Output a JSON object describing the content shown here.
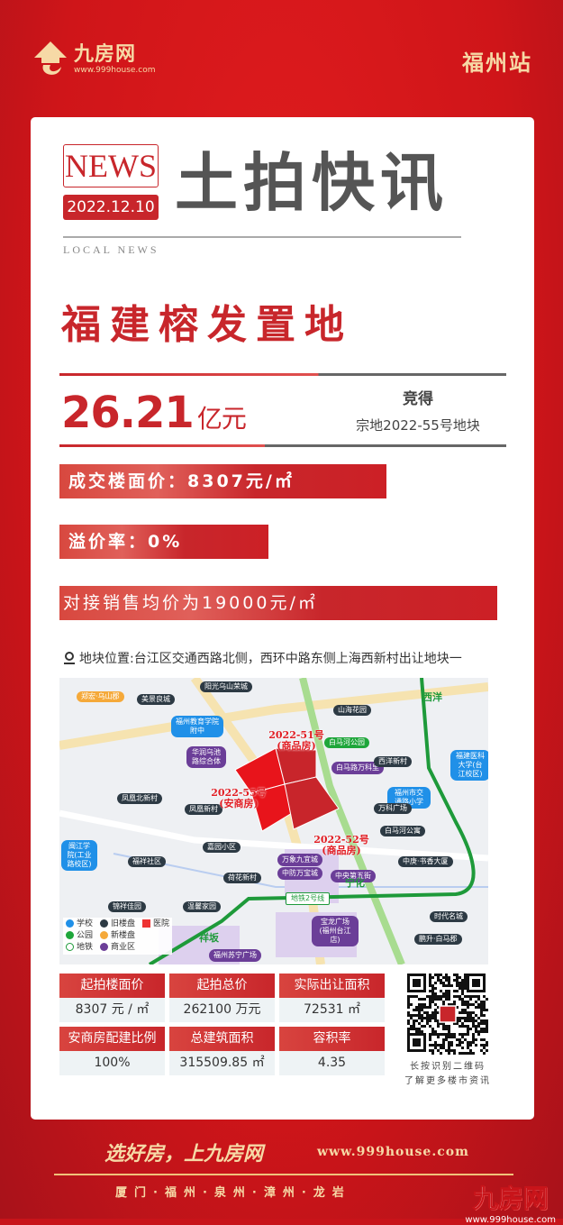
{
  "header": {
    "brand": "九房网",
    "url": "www.999house.com",
    "station": "福州站"
  },
  "masthead": {
    "news": "NEWS",
    "date": "2022.12.10",
    "title": "土拍快讯",
    "sub": "LOCAL NEWS"
  },
  "headline": "福建榕发置地",
  "deal": {
    "price": "26.21",
    "unit": "亿元",
    "won": "竞得",
    "parcel": "宗地2022-55号地块"
  },
  "bars": [
    {
      "text": "成交楼面价：8307元/㎡"
    },
    {
      "text": "溢价率：0%"
    },
    {
      "text": "对接销售均价为19000元/㎡"
    }
  ],
  "location": "地块位置:台江区交通西路北侧，西环中路东侧上海西新村出让地块一",
  "map": {
    "labels": [
      "郑宏·乌山郡",
      "美景良城",
      "阳光乌山荣城",
      "福州教育学院附中",
      "华润乌池路综合体",
      "凤凰北新村",
      "凤凰新村",
      "山海花园",
      "白马河公园",
      "白马路万科里",
      "西洋新村",
      "西洋",
      "福建医科大学(台江校区)",
      "福州市交通路小学",
      "万科广场",
      "闽江学院(工业路校区)",
      "嘉园小区",
      "福祥社区",
      "荷花新村",
      "锦祥佳园",
      "温馨家园",
      "祥坂",
      "福州苏宁广场",
      "白马河公寓",
      "万象九宜城",
      "中防万宝城",
      "中央第五街",
      "中庚·书香大厦",
      "宁化",
      "地铁2号线",
      "宝龙广场(福州台江店)",
      "时代名城",
      "鹏升·白马郡"
    ],
    "parcels": [
      "2022-51号(商品房)",
      "2022-55号(安商房)",
      "2022-52号(商品房)"
    ],
    "legend": [
      "学校",
      "旧楼盘",
      "医院",
      "公园",
      "新楼盘",
      "地铁",
      "商业区"
    ],
    "colors": {
      "parcel": "#e8141b",
      "metro": "#1e9a3a",
      "school": "#2090e8",
      "commercial": "#6b3e98"
    }
  },
  "table": [
    {
      "label": "起拍楼面价",
      "value": "8307 元 / ㎡"
    },
    {
      "label": "起拍总价",
      "value": "262100 万元"
    },
    {
      "label": "实际出让面积",
      "value": "72531 ㎡"
    },
    {
      "label": "安商房配建比例",
      "value": "100%"
    },
    {
      "label": "总建筑面积",
      "value": "315509.85 ㎡"
    },
    {
      "label": "容积率",
      "value": "4.35"
    }
  ],
  "qr": {
    "line1": "长按识别二维码",
    "line2": "了解更多楼市资讯"
  },
  "footer": {
    "slogan": "选好房，上九房网",
    "url": "www.999house.com",
    "cities": "厦门·福州·泉州·漳州·龙岩",
    "watermark": "九房网",
    "watermark_url": "www.999house.com"
  },
  "colors": {
    "brand_red": "#c8262b",
    "gold": "#f6d9a6"
  }
}
